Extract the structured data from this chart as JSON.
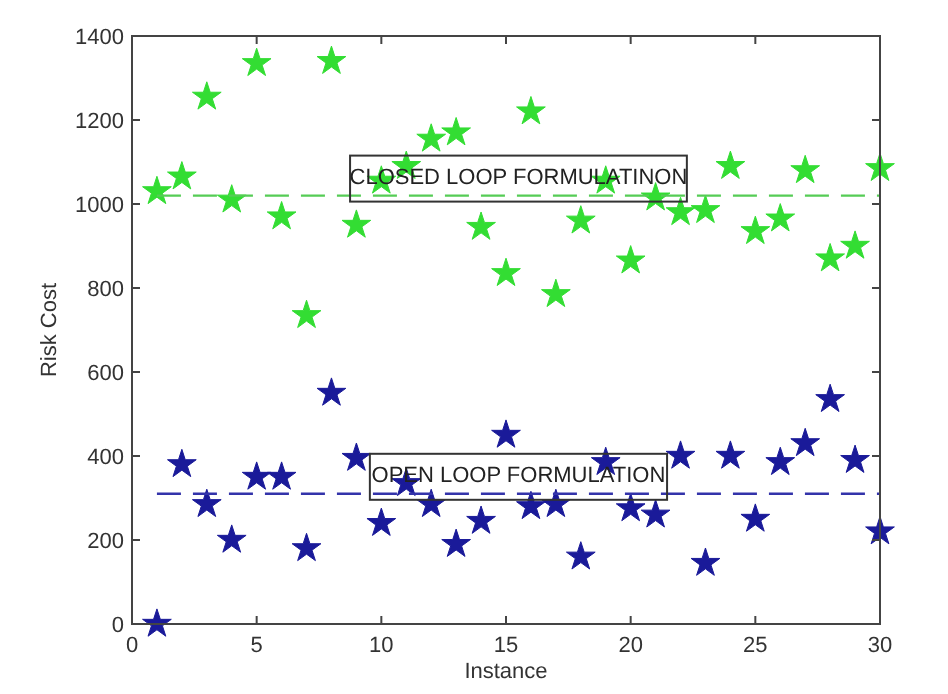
{
  "chart_data": {
    "type": "scatter",
    "xlabel": "Instance",
    "ylabel": "Risk Cost",
    "x": [
      1,
      2,
      3,
      4,
      5,
      6,
      7,
      8,
      9,
      10,
      11,
      12,
      13,
      14,
      15,
      16,
      17,
      18,
      19,
      20,
      21,
      22,
      23,
      24,
      25,
      26,
      27,
      28,
      29,
      30
    ],
    "series": [
      {
        "color": "#33dd33",
        "values": [
          1030,
          1065,
          1255,
          1010,
          1335,
          970,
          735,
          1340,
          950,
          1055,
          1090,
          1155,
          1170,
          945,
          835,
          1220,
          785,
          960,
          1055,
          865,
          1015,
          980,
          985,
          1090,
          935,
          965,
          1080,
          870,
          900,
          1085
        ]
      },
      {
        "color": "#1a1a99",
        "values": [
          0,
          380,
          285,
          200,
          350,
          350,
          180,
          550,
          395,
          240,
          335,
          285,
          190,
          245,
          450,
          280,
          285,
          160,
          385,
          275,
          260,
          400,
          145,
          400,
          250,
          385,
          430,
          535,
          390,
          220
        ]
      }
    ],
    "ref_lines": [
      {
        "axis": "y",
        "value": 1020,
        "label": "CLOSED LOOP FORMULATINON",
        "color": "#55cc55",
        "line_style": "dashed"
      },
      {
        "axis": "y",
        "value": 310,
        "label": "OPEN LOOP FORMULATION",
        "color": "#3333aa",
        "line_style": "dashed"
      }
    ],
    "xlim": [
      0,
      30
    ],
    "xticks": [
      0,
      5,
      10,
      15,
      20,
      25,
      30
    ],
    "ylim": [
      0,
      1400
    ],
    "yticks": [
      0,
      200,
      400,
      600,
      800,
      1000,
      1200,
      1400
    ],
    "marker": "star",
    "grid": false
  }
}
